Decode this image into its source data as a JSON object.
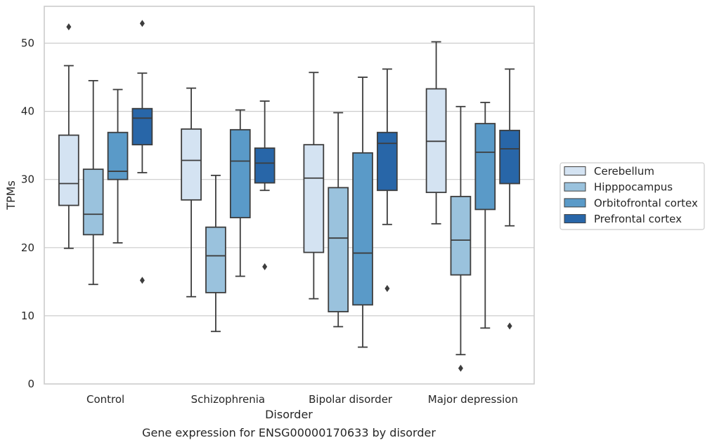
{
  "chart_data": {
    "type": "box",
    "title": "Gene expression for ENSG00000170633 by disorder",
    "xlabel": "Disorder",
    "ylabel": "TPMs",
    "ylim": [
      0,
      55.5
    ],
    "yticks": [
      0,
      10,
      20,
      30,
      40,
      50
    ],
    "grid": "y",
    "legend_position": "right",
    "categories": [
      "Control",
      "Schizophrenia",
      "Bipolar disorder",
      "Major depression"
    ],
    "series": [
      {
        "name": "Cerebellum",
        "color": "#d4e3f2",
        "boxes": [
          {
            "whisker_low": 19.9,
            "q1": 26.2,
            "median": 29.4,
            "q3": 36.5,
            "whisker_high": 46.7,
            "outliers": [
              52.4
            ]
          },
          {
            "whisker_low": 12.8,
            "q1": 27.0,
            "median": 32.8,
            "q3": 37.4,
            "whisker_high": 43.4,
            "outliers": []
          },
          {
            "whisker_low": 12.5,
            "q1": 19.3,
            "median": 30.2,
            "q3": 35.1,
            "whisker_high": 45.7,
            "outliers": []
          },
          {
            "whisker_low": 23.5,
            "q1": 28.1,
            "median": 35.6,
            "q3": 43.3,
            "whisker_high": 50.2,
            "outliers": []
          }
        ]
      },
      {
        "name": "Hipppocampus",
        "color": "#9ac2dd",
        "boxes": [
          {
            "whisker_low": 14.6,
            "q1": 21.9,
            "median": 24.9,
            "q3": 31.5,
            "whisker_high": 44.5,
            "outliers": []
          },
          {
            "whisker_low": 7.7,
            "q1": 13.4,
            "median": 18.8,
            "q3": 23.0,
            "whisker_high": 30.6,
            "outliers": []
          },
          {
            "whisker_low": 8.4,
            "q1": 10.6,
            "median": 21.4,
            "q3": 28.8,
            "whisker_high": 39.8,
            "outliers": []
          },
          {
            "whisker_low": 4.3,
            "q1": 16.0,
            "median": 21.1,
            "q3": 27.5,
            "whisker_high": 40.7,
            "outliers": [
              2.3
            ]
          }
        ]
      },
      {
        "name": "Orbitofrontal cortex",
        "color": "#5a9ac8",
        "boxes": [
          {
            "whisker_low": 20.7,
            "q1": 30.0,
            "median": 31.2,
            "q3": 36.9,
            "whisker_high": 43.2,
            "outliers": []
          },
          {
            "whisker_low": 15.8,
            "q1": 24.4,
            "median": 32.7,
            "q3": 37.3,
            "whisker_high": 40.2,
            "outliers": []
          },
          {
            "whisker_low": 5.4,
            "q1": 11.6,
            "median": 19.2,
            "q3": 33.9,
            "whisker_high": 45.0,
            "outliers": []
          },
          {
            "whisker_low": 8.2,
            "q1": 25.6,
            "median": 34.0,
            "q3": 38.2,
            "whisker_high": 41.3,
            "outliers": []
          }
        ]
      },
      {
        "name": "Prefrontal cortex",
        "color": "#2866a8",
        "boxes": [
          {
            "whisker_low": 31.0,
            "q1": 35.1,
            "median": 39.0,
            "q3": 40.4,
            "whisker_high": 45.6,
            "outliers": [
              52.9,
              15.2
            ]
          },
          {
            "whisker_low": 28.4,
            "q1": 29.5,
            "median": 32.4,
            "q3": 34.6,
            "whisker_high": 41.5,
            "outliers": [
              17.2
            ]
          },
          {
            "whisker_low": 23.4,
            "q1": 28.4,
            "median": 35.3,
            "q3": 36.9,
            "whisker_high": 46.2,
            "outliers": [
              14.0
            ]
          },
          {
            "whisker_low": 23.2,
            "q1": 29.4,
            "median": 34.5,
            "q3": 37.2,
            "whisker_high": 46.2,
            "outliers": [
              8.5
            ]
          }
        ]
      }
    ]
  }
}
